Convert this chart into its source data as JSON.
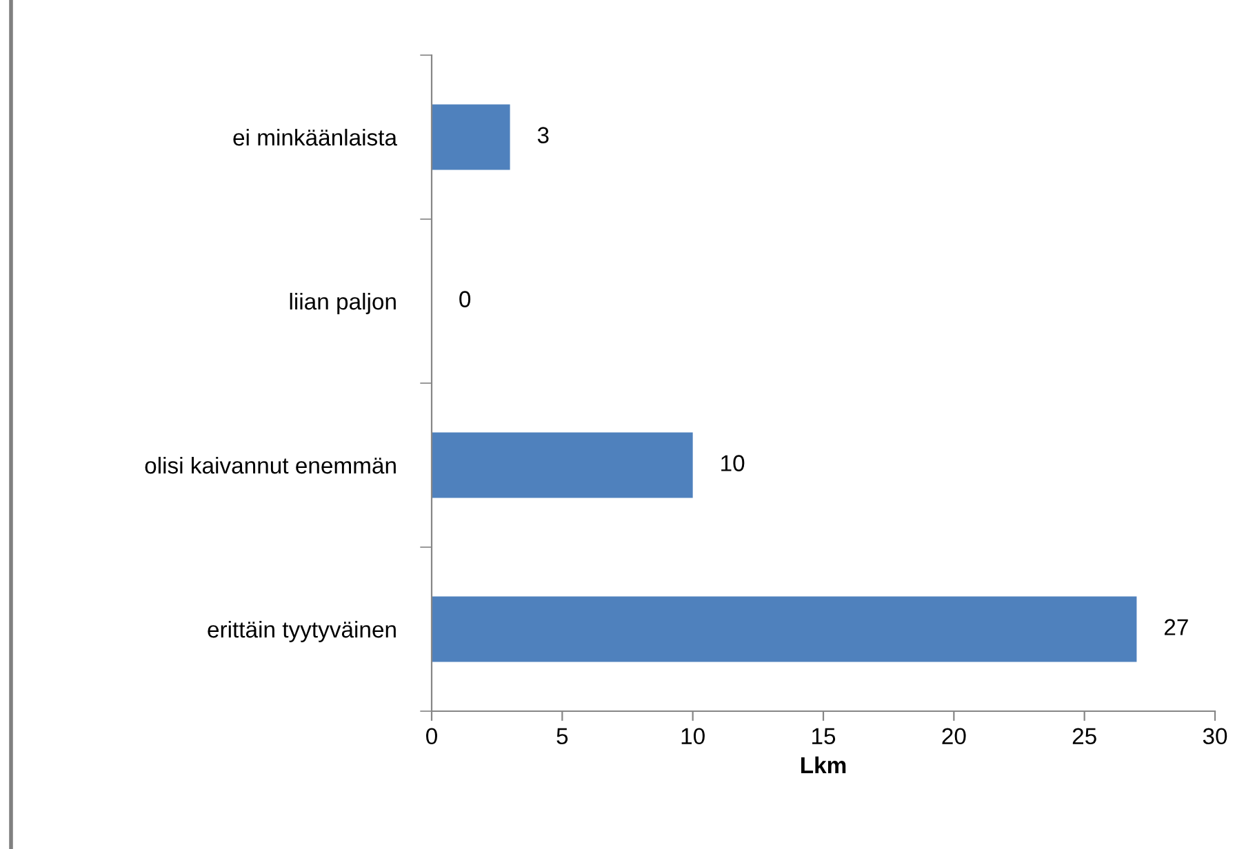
{
  "chart_data": {
    "type": "bar",
    "orientation": "horizontal",
    "xlabel": "Lkm",
    "categories": [
      "ei minkäänlaista",
      "liian paljon",
      "olisi kaivannut enemmän",
      "erittäin tyytyväinen"
    ],
    "values": [
      3,
      0,
      10,
      27
    ],
    "color": "#4f81bd",
    "xlim": [
      0,
      30
    ],
    "xticks": [
      0,
      5,
      10,
      15,
      20,
      25,
      30
    ],
    "data_labels": true,
    "grid": false,
    "legend": false
  }
}
